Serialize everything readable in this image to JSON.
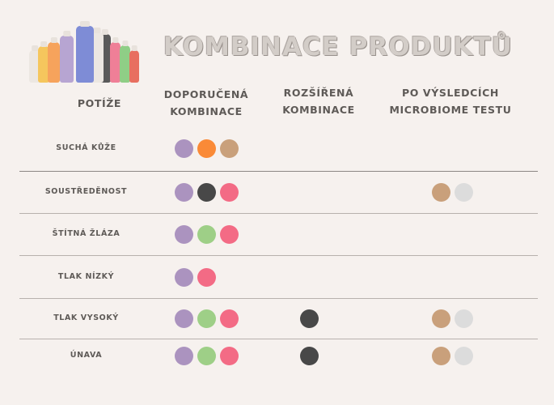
{
  "title": "KOMBINACE PRODUKTŮ",
  "headers": {
    "issue": "POTÍŽE",
    "recommended": [
      "DOPORUČENÁ",
      "KOMBINACE"
    ],
    "extended": [
      "ROZŠÍŘENÁ",
      "KOMBINACE"
    ],
    "microbiome": [
      "PO VÝSLEDCÍCH",
      "MICROBIOME TESTU"
    ]
  },
  "colors": {
    "purple": "#ab93bf",
    "orange": "#fa8a37",
    "tan": "#c9a07b",
    "dark": "#484848",
    "pink": "#f36b85",
    "green": "#9ecf87",
    "lightgray": "#dcdcdc",
    "bottle_blue": "#7e8cd6",
    "bottle_purple": "#b7a5d2",
    "bottle_white": "#ece7e2",
    "bottle_orange": "#f6a35c",
    "bottle_yellow": "#f5c65d",
    "bottle_dark": "#5a5a5a",
    "bottle_pink": "#ef7f97",
    "bottle_green": "#8fce86",
    "bottle_red": "#e86f60"
  },
  "rows": [
    {
      "label": "SUCHÁ KŮŽE",
      "recommended": [
        "purple",
        "orange",
        "tan"
      ],
      "extended": [],
      "microbiome": []
    },
    {
      "label": "SOUSTŘEDĚNOST",
      "recommended": [
        "purple",
        "dark",
        "pink"
      ],
      "extended": [],
      "microbiome": [
        "tan",
        "lightgray"
      ]
    },
    {
      "label": "ŠTÍTNÁ ŽLÁZA",
      "recommended": [
        "purple",
        "green",
        "pink"
      ],
      "extended": [],
      "microbiome": []
    },
    {
      "label": "TLAK NÍZKÝ",
      "recommended": [
        "purple",
        "pink"
      ],
      "extended": [],
      "microbiome": []
    },
    {
      "label": "TLAK VYSOKÝ",
      "recommended": [
        "purple",
        "green",
        "pink"
      ],
      "extended": [
        "dark"
      ],
      "microbiome": [
        "tan",
        "lightgray"
      ]
    },
    {
      "label": "ÚNAVA",
      "recommended": [
        "purple",
        "green",
        "pink"
      ],
      "extended": [
        "dark"
      ],
      "microbiome": [
        "tan",
        "lightgray"
      ]
    }
  ]
}
